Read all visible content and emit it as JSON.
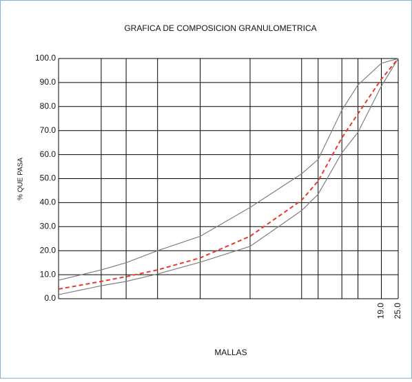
{
  "chart_data": {
    "type": "line",
    "title": "GRAFICA DE COMPOSICION  GRANULOMETRICA",
    "xlabel": "MALLAS",
    "ylabel": "% QUE PASA",
    "xscale": "log",
    "xlim": [
      0.1,
      25
    ],
    "xgrid": [
      0.2,
      0.3,
      0.5,
      1,
      2.25,
      5.2,
      6.8,
      10,
      13,
      19,
      25
    ],
    "xticks": [
      {
        "value": 19,
        "label": "19.0"
      },
      {
        "value": 25,
        "label": "25.0"
      }
    ],
    "ylim": [
      0,
      100
    ],
    "yticks": [
      {
        "value": 0,
        "label": "0.0"
      },
      {
        "value": 10,
        "label": "10.0"
      },
      {
        "value": 20,
        "label": "20.0"
      },
      {
        "value": 30,
        "label": "30.0"
      },
      {
        "value": 40,
        "label": "40.0"
      },
      {
        "value": 50,
        "label": "50.0"
      },
      {
        "value": 60,
        "label": "60.0"
      },
      {
        "value": 70,
        "label": "70.0"
      },
      {
        "value": 80,
        "label": "80.0"
      },
      {
        "value": 90,
        "label": "90.0"
      },
      {
        "value": 100,
        "label": "100.0"
      }
    ],
    "grid": true,
    "x": [
      0.1,
      0.2,
      0.3,
      0.5,
      1,
      2.25,
      5.2,
      6.8,
      10,
      13,
      19,
      25
    ],
    "series": [
      {
        "color": "#7f7f7f",
        "dash": false,
        "values": [
          7.7,
          12,
          15,
          20,
          26,
          38,
          52,
          58,
          78.5,
          89,
          98,
          100
        ]
      },
      {
        "color": "#7f7f7f",
        "dash": false,
        "values": [
          1.7,
          5.4,
          7.2,
          10.3,
          15.2,
          21.8,
          36.7,
          43.5,
          60.7,
          69.3,
          88.5,
          100
        ]
      },
      {
        "color": "#e8392b",
        "dash": true,
        "values": [
          4,
          7.2,
          9.2,
          12,
          17,
          26,
          41,
          49,
          67,
          77,
          91.4,
          100
        ]
      }
    ]
  }
}
